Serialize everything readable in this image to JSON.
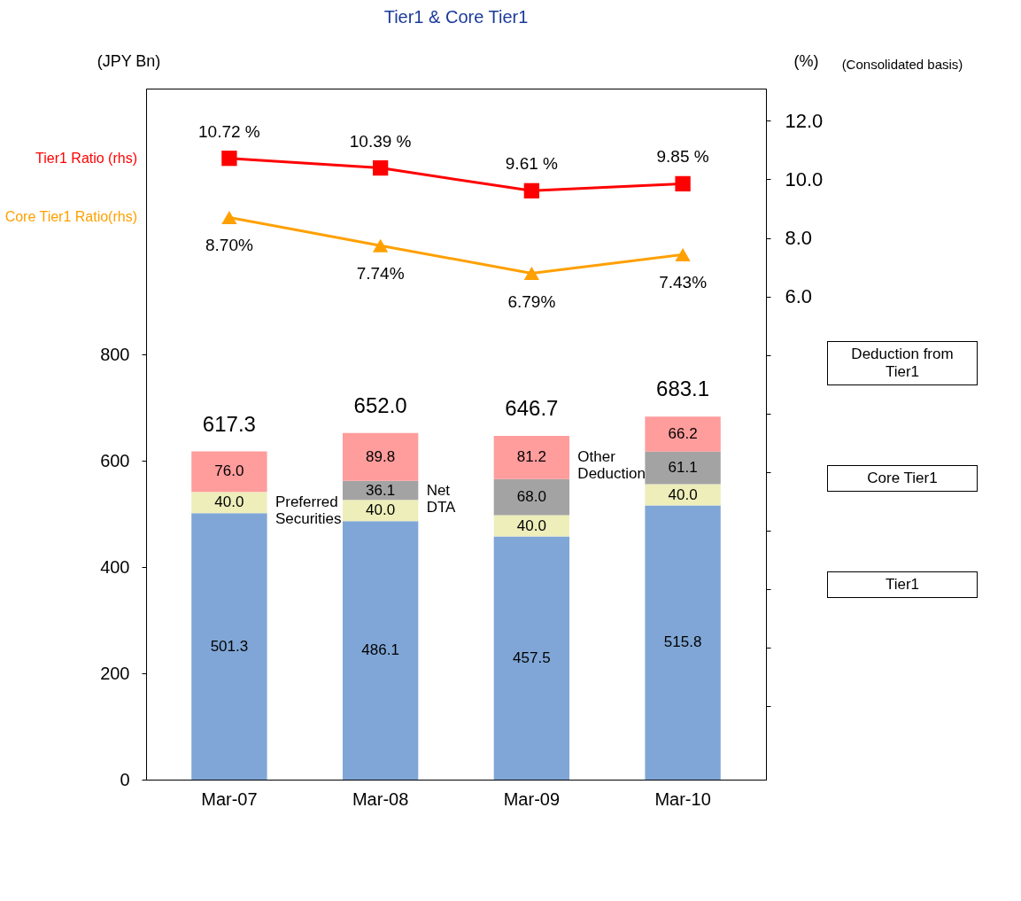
{
  "chart_data": {
    "type": "bar",
    "title": "Tier1 & Core Tier1",
    "ylabel": "(JPY Bn)",
    "y2label": "(%)",
    "categories": [
      "Mar-07",
      "Mar-08",
      "Mar-09",
      "Mar-10"
    ],
    "stacked": true,
    "legend": false,
    "grid": false,
    "ylim": [
      0,
      1300
    ],
    "yticks": [
      0,
      200,
      400,
      600,
      800
    ],
    "y2lim": [
      -10.5,
      13.1
    ],
    "y2ticks": [
      {
        "value": 12,
        "label": "12.0"
      },
      {
        "value": 10,
        "label": "10.0"
      },
      {
        "value": 8,
        "label": "8.0"
      },
      {
        "value": 6,
        "label": "6.0"
      },
      {
        "value": 4,
        "label": null
      },
      {
        "value": 2,
        "label": null
      },
      {
        "value": 0,
        "label": null
      },
      {
        "value": -2,
        "label": null
      },
      {
        "value": -4,
        "label": null
      },
      {
        "value": -6,
        "label": null
      },
      {
        "value": -8,
        "label": null
      }
    ],
    "series": [
      {
        "color": "#7fa6d6",
        "values": [
          501.3,
          486.1,
          457.5,
          515.8
        ],
        "value_labels": [
          "501.3",
          "486.1",
          "457.5",
          "515.8"
        ]
      },
      {
        "name": "Preferred Securities",
        "color": "#eeeebb",
        "values": [
          40,
          40,
          40,
          40
        ],
        "value_labels": [
          "40.0",
          "40.0",
          "40.0",
          "40.0"
        ]
      },
      {
        "name": "Net DTA",
        "color": "#a3a3a3",
        "values": [
          null,
          36.1,
          68.0,
          61.1
        ],
        "value_labels": [
          null,
          "36.1",
          "68.0",
          "61.1"
        ]
      },
      {
        "name": "Other Deduction",
        "color": "#ff9c9c",
        "values": [
          76.0,
          89.8,
          81.2,
          66.2
        ],
        "value_labels": [
          "76.0",
          "89.8",
          "81.2",
          "66.2"
        ]
      },
      {
        "type": "line",
        "name": "Tier1 Ratio (rhs)",
        "color": "#ff0000",
        "axis": "y2",
        "marker": "square",
        "values": [
          10.72,
          10.39,
          9.61,
          9.85
        ],
        "value_labels": [
          "10.72 %",
          "10.39 %",
          "9.61 %",
          "9.85 %"
        ]
      },
      {
        "type": "line",
        "name": "Core Tier1 Ratio(rhs)",
        "color": "#ffa000",
        "axis": "y2",
        "marker": "triangle",
        "values": [
          8.7,
          7.74,
          6.79,
          7.43
        ],
        "value_labels": [
          "8.70%",
          "7.74%",
          "6.79%",
          "7.43%"
        ]
      }
    ],
    "totals": [
      "617.3",
      "652.0",
      "646.7",
      "683.1"
    ],
    "annotations": [
      "(Consolidated basis)",
      "Deduction from Tier1",
      "Core Tier1",
      "Tier1"
    ]
  }
}
